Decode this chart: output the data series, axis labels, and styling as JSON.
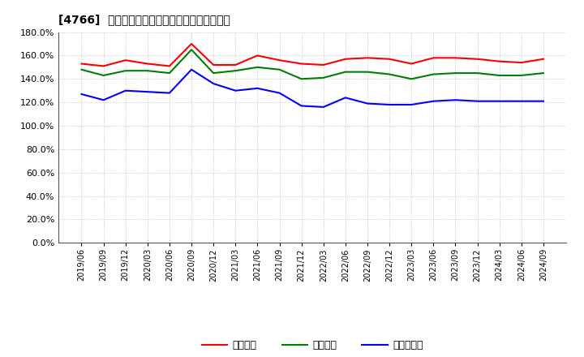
{
  "title": "[4766]  流動比率、当座比率、現预金比率の推移",
  "x_labels": [
    "2019/06",
    "2019/09",
    "2019/12",
    "2020/03",
    "2020/06",
    "2020/09",
    "2020/12",
    "2021/03",
    "2021/06",
    "2021/09",
    "2021/12",
    "2022/03",
    "2022/06",
    "2022/09",
    "2022/12",
    "2023/03",
    "2023/06",
    "2023/09",
    "2023/12",
    "2024/03",
    "2024/06",
    "2024/09"
  ],
  "ryudo": [
    153,
    151,
    156,
    153,
    151,
    170,
    152,
    152,
    160,
    156,
    153,
    152,
    157,
    158,
    157,
    153,
    158,
    158,
    157,
    155,
    154,
    157
  ],
  "toza": [
    148,
    143,
    147,
    147,
    145,
    165,
    145,
    147,
    150,
    148,
    140,
    141,
    146,
    146,
    144,
    140,
    144,
    145,
    145,
    143,
    143,
    145
  ],
  "genyo": [
    127,
    122,
    130,
    129,
    128,
    148,
    136,
    130,
    132,
    128,
    117,
    116,
    124,
    119,
    118,
    118,
    121,
    122,
    121,
    121,
    121,
    121
  ],
  "ryudo_color": "#ff0000",
  "toza_color": "#008000",
  "genyo_color": "#0000ff",
  "ylim": [
    0,
    180
  ],
  "yticks": [
    0,
    20,
    40,
    60,
    80,
    100,
    120,
    140,
    160,
    180
  ],
  "legend_labels": [
    "流動比率",
    "当座比率",
    "現预金比率"
  ],
  "background_color": "#ffffff",
  "grid_color": "#aaaaaa",
  "plot_bg_color": "#ffffff"
}
